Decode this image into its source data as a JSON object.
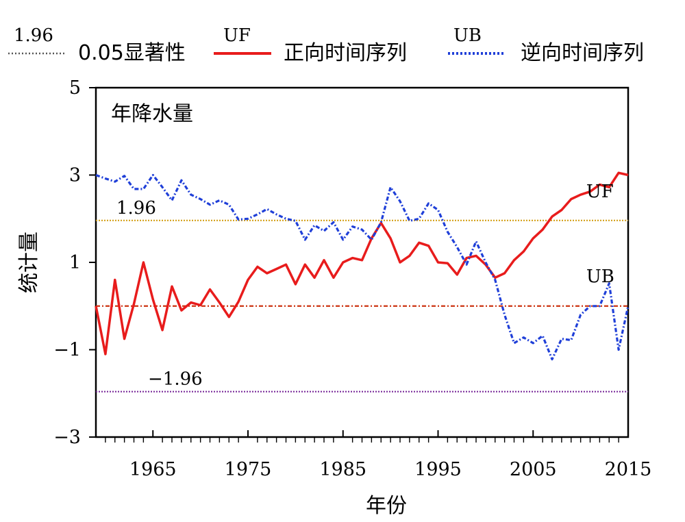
{
  "legend": [
    {
      "key": "sig",
      "label_top": "1.96",
      "label": "0.05显著性",
      "color": "#555555",
      "style": "dotted"
    },
    {
      "key": "uf",
      "label_top": "UF",
      "label": "正向时间序列",
      "color": "#e81c1c",
      "style": "solid"
    },
    {
      "key": "ub",
      "label_top": "UB",
      "label": "逆向时间序列",
      "color": "#1f3fd8",
      "style": "dotted"
    }
  ],
  "chart_data": {
    "type": "line",
    "title": "年降水量",
    "xlabel": "年份",
    "ylabel": "统计量",
    "xlim": [
      1959,
      2015
    ],
    "ylim": [
      -3,
      5
    ],
    "xticks": [
      1965,
      1975,
      1985,
      1995,
      2005,
      2015
    ],
    "yticks": [
      -3,
      -1,
      1,
      3,
      5
    ],
    "ytick_labels": [
      "−3",
      "−1",
      "1",
      "3",
      "5"
    ],
    "grid": false,
    "reference_lines": [
      {
        "y": 1.96,
        "label": "1.96",
        "color": "#d4a017"
      },
      {
        "y": 0,
        "label": "",
        "color": "#cc3311"
      },
      {
        "y": -1.96,
        "label": "−1.96",
        "color": "#7a2a9a"
      }
    ],
    "annotations": [
      {
        "text": "UF",
        "x": 2008,
        "y": 2.65
      },
      {
        "text": "UB",
        "x": 2008,
        "y": 0.7
      }
    ],
    "series": [
      {
        "name": "UF",
        "color": "#e81c1c",
        "style": "solid",
        "x": [
          1959,
          1960,
          1961,
          1962,
          1963,
          1964,
          1965,
          1966,
          1967,
          1968,
          1969,
          1970,
          1971,
          1972,
          1973,
          1974,
          1975,
          1976,
          1977,
          1978,
          1979,
          1980,
          1981,
          1982,
          1983,
          1984,
          1985,
          1986,
          1987,
          1988,
          1989,
          1990,
          1991,
          1992,
          1993,
          1994,
          1995,
          1996,
          1997,
          1998,
          1999,
          2000,
          2001,
          2002,
          2003,
          2004,
          2005,
          2006,
          2007,
          2008,
          2009,
          2010,
          2011,
          2012,
          2013,
          2014,
          2015
        ],
        "y": [
          0,
          -1.1,
          0.6,
          -0.75,
          0.05,
          1.0,
          0.15,
          -0.55,
          0.45,
          -0.1,
          0.08,
          0.02,
          0.38,
          0.08,
          -0.25,
          0.1,
          0.6,
          0.9,
          0.75,
          0.85,
          0.95,
          0.5,
          0.95,
          0.65,
          1.05,
          0.65,
          1.0,
          1.1,
          1.05,
          1.55,
          1.9,
          1.55,
          1.0,
          1.15,
          1.45,
          1.38,
          1.0,
          0.98,
          0.72,
          1.1,
          1.15,
          0.95,
          0.65,
          0.75,
          1.05,
          1.25,
          1.55,
          1.75,
          2.05,
          2.2,
          2.45,
          2.55,
          2.62,
          2.78,
          2.72,
          3.05,
          3.0
        ]
      },
      {
        "name": "UB",
        "color": "#1f3fd8",
        "style": "dotted",
        "x": [
          1959,
          1960,
          1961,
          1962,
          1963,
          1964,
          1965,
          1966,
          1967,
          1968,
          1969,
          1970,
          1971,
          1972,
          1973,
          1974,
          1975,
          1976,
          1977,
          1978,
          1979,
          1980,
          1981,
          1982,
          1983,
          1984,
          1985,
          1986,
          1987,
          1988,
          1989,
          1990,
          1991,
          1992,
          1993,
          1994,
          1995,
          1996,
          1997,
          1998,
          1999,
          2000,
          2001,
          2002,
          2003,
          2004,
          2005,
          2006,
          2007,
          2008,
          2009,
          2010,
          2011,
          2012,
          2013,
          2014,
          2015
        ],
        "y": [
          3.0,
          2.92,
          2.85,
          2.98,
          2.68,
          2.68,
          3.0,
          2.72,
          2.42,
          2.88,
          2.55,
          2.45,
          2.32,
          2.42,
          2.32,
          1.98,
          2.0,
          2.1,
          2.22,
          2.1,
          2.0,
          1.95,
          1.52,
          1.85,
          1.72,
          1.92,
          1.52,
          1.82,
          1.75,
          1.52,
          1.92,
          2.72,
          2.4,
          1.95,
          2.0,
          2.35,
          2.2,
          1.7,
          1.35,
          0.95,
          1.48,
          1.0,
          0.6,
          -0.2,
          -0.85,
          -0.72,
          -0.85,
          -0.68,
          -1.22,
          -0.75,
          -0.78,
          -0.2,
          0,
          0,
          0.52,
          -1.0,
          0
        ]
      }
    ]
  }
}
